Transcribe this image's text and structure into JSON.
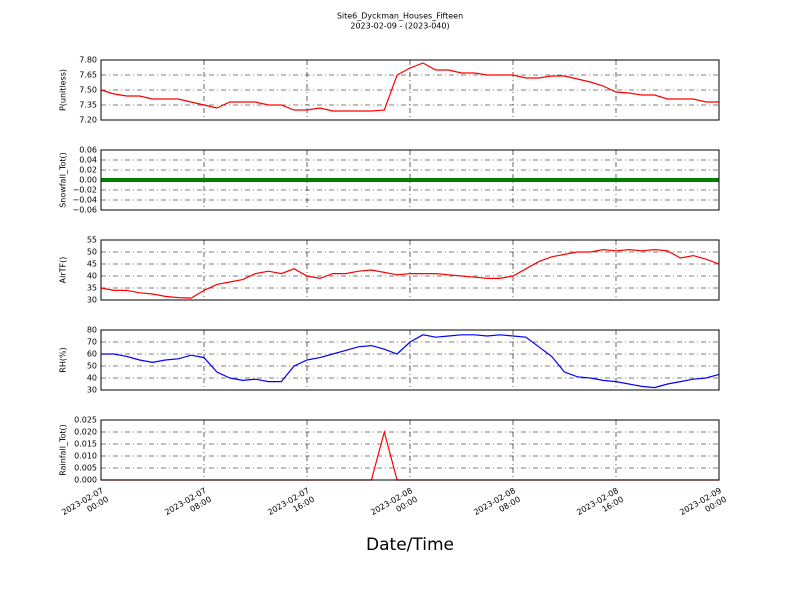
{
  "chart_data": {
    "type": "line",
    "title": "Site6_Dyckman_Houses_Fifteen",
    "subtitle": "2023-02-09 - (2023-040)",
    "xlabel": "Date/Time",
    "grid": true,
    "xlim": [
      "2023-02-07 00:00",
      "2023-02-09 00:00"
    ],
    "xticks": [
      {
        "value": "2023-02-07 00:00",
        "label": "2023-02-07\n00:00"
      },
      {
        "value": "2023-02-07 08:00",
        "label": "2023-02-07\n08:00"
      },
      {
        "value": "2023-02-07 16:00",
        "label": "2023-02-07\n16:00"
      },
      {
        "value": "2023-02-08 00:00",
        "label": "2023-02-08\n00:00"
      },
      {
        "value": "2023-02-08 08:00",
        "label": "2023-02-08\n08:00"
      },
      {
        "value": "2023-02-08 16:00",
        "label": "2023-02-08\n16:00"
      },
      {
        "value": "2023-02-09 00:00",
        "label": "2023-02-09\n00:00"
      }
    ],
    "x": [
      "2023-02-07 00:00",
      "2023-02-07 01:00",
      "2023-02-07 02:00",
      "2023-02-07 03:00",
      "2023-02-07 04:00",
      "2023-02-07 05:00",
      "2023-02-07 06:00",
      "2023-02-07 07:00",
      "2023-02-07 08:00",
      "2023-02-07 09:00",
      "2023-02-07 10:00",
      "2023-02-07 11:00",
      "2023-02-07 12:00",
      "2023-02-07 13:00",
      "2023-02-07 14:00",
      "2023-02-07 15:00",
      "2023-02-07 16:00",
      "2023-02-07 17:00",
      "2023-02-07 18:00",
      "2023-02-07 19:00",
      "2023-02-07 20:00",
      "2023-02-07 21:00",
      "2023-02-07 22:00",
      "2023-02-07 23:00",
      "2023-02-08 00:00",
      "2023-02-08 01:00",
      "2023-02-08 02:00",
      "2023-02-08 03:00",
      "2023-02-08 04:00",
      "2023-02-08 05:00",
      "2023-02-08 06:00",
      "2023-02-08 07:00",
      "2023-02-08 08:00",
      "2023-02-08 09:00",
      "2023-02-08 10:00",
      "2023-02-08 11:00",
      "2023-02-08 12:00",
      "2023-02-08 13:00",
      "2023-02-08 14:00",
      "2023-02-08 15:00",
      "2023-02-08 16:00",
      "2023-02-08 17:00",
      "2023-02-08 18:00",
      "2023-02-08 19:00",
      "2023-02-08 20:00",
      "2023-02-08 21:00",
      "2023-02-08 22:00",
      "2023-02-08 23:00",
      "2023-02-09 00:00"
    ],
    "panels": [
      {
        "ylabel": "P(unitless)",
        "ylim": [
          7.2,
          7.8
        ],
        "yticks": [
          {
            "value": 7.2,
            "label": "7.20"
          },
          7.35,
          {
            "value": 7.5,
            "label": "7.50"
          },
          7.65,
          {
            "value": 7.8,
            "label": "7.80"
          }
        ],
        "series": [
          {
            "color": "#ff0000",
            "values": [
              7.5,
              7.46,
              7.44,
              7.44,
              7.41,
              7.41,
              7.41,
              7.38,
              7.35,
              7.32,
              7.38,
              7.38,
              7.38,
              7.35,
              7.35,
              7.3,
              7.3,
              7.32,
              7.29,
              7.29,
              7.29,
              7.29,
              7.3,
              7.65,
              7.72,
              7.77,
              7.7,
              7.7,
              7.67,
              7.67,
              7.65,
              7.65,
              7.65,
              7.62,
              7.62,
              7.64,
              7.64,
              7.61,
              7.58,
              7.54,
              7.48,
              7.47,
              7.45,
              7.45,
              7.41,
              7.41,
              7.41,
              7.38,
              7.38
            ]
          }
        ]
      },
      {
        "ylabel": "Snowfall_Tot()",
        "ylim": [
          -0.06,
          0.06
        ],
        "yticks": [
          {
            "value": -0.06,
            "label": "−0.06"
          },
          {
            "value": -0.04,
            "label": "−0.04"
          },
          {
            "value": -0.02,
            "label": "−0.02"
          },
          {
            "value": 0,
            "label": "0.00"
          },
          0.02,
          0.04,
          0.06
        ],
        "series": [
          {
            "color": "#008000",
            "values": [
              0,
              0,
              0,
              0,
              0,
              0,
              0,
              0,
              0,
              0,
              0,
              0,
              0,
              0,
              0,
              0,
              0,
              0,
              0,
              0,
              0,
              0,
              0,
              0,
              0,
              0,
              0,
              0,
              0,
              0,
              0,
              0,
              0,
              0,
              0,
              0,
              0,
              0,
              0,
              0,
              0,
              0,
              0,
              0,
              0,
              0,
              0,
              0,
              0
            ]
          }
        ]
      },
      {
        "ylabel": "AirTF()",
        "ylim": [
          30,
          55
        ],
        "yticks": [
          30,
          35,
          40,
          45,
          50,
          55
        ],
        "series": [
          {
            "color": "#ff0000",
            "values": [
              35,
              34,
              34,
              33,
              32.5,
              31.5,
              31,
              30.8,
              34,
              36.5,
              37.5,
              38.5,
              41,
              42,
              41,
              43,
              40,
              39,
              41,
              41,
              42,
              42.5,
              41.5,
              40.5,
              41,
              41,
              41,
              40.5,
              40,
              39.5,
              39,
              39,
              40,
              43,
              46,
              48,
              49,
              50,
              50,
              51,
              50.5,
              51,
              50.5,
              51,
              50.5,
              47.5,
              48.5,
              47,
              45
            ]
          }
        ]
      },
      {
        "ylabel": "RH(%)",
        "ylim": [
          30,
          80
        ],
        "yticks": [
          30,
          40,
          50,
          60,
          70,
          80
        ],
        "series": [
          {
            "color": "#0000ff",
            "values": [
              60,
              60,
              58,
              55,
              53,
              55,
              56,
              59,
              57,
              45,
              40,
              38,
              39,
              37,
              37,
              50,
              55,
              57,
              60,
              63,
              66,
              67,
              64,
              60,
              70,
              76,
              74,
              75,
              76,
              76,
              75,
              76,
              75,
              74,
              66,
              58,
              45,
              41,
              40,
              38,
              37,
              35,
              33,
              32,
              35,
              37,
              39,
              40,
              43
            ]
          }
        ]
      },
      {
        "ylabel": "Rainfall_Tot()",
        "ylim": [
          0,
          0.025
        ],
        "yticks": [
          {
            "value": 0,
            "label": "0.000"
          },
          0.005,
          {
            "value": 0.01,
            "label": "0.010"
          },
          0.015,
          {
            "value": 0.02,
            "label": "0.020"
          },
          0.025
        ],
        "series": [
          {
            "color": "#ff0000",
            "values": [
              0,
              0,
              0,
              0,
              0,
              0,
              0,
              0,
              0,
              0,
              0,
              0,
              0,
              0,
              0,
              0,
              0,
              0,
              0,
              0,
              0,
              0,
              0.02,
              0,
              0,
              0,
              0,
              0,
              0,
              0,
              0,
              0,
              0,
              0,
              0,
              0,
              0,
              0,
              0,
              0,
              0,
              0,
              0,
              0,
              0,
              0,
              0,
              0,
              0
            ]
          }
        ]
      }
    ]
  }
}
